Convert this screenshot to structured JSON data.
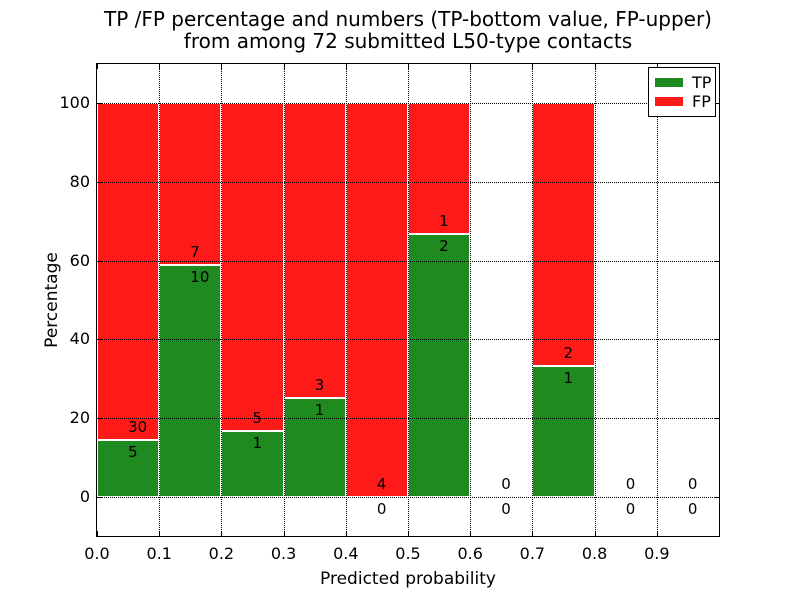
{
  "title": {
    "line1": "TP /FP percentage and numbers (TP-bottom value, FP-upper)",
    "line2": "from among 72 submitted L50-type contacts"
  },
  "colors": {
    "tp_green": "#1f8a1f",
    "fp_red": "#ff1a1a",
    "grid": "#000000",
    "text": "#000000",
    "background": "#ffffff"
  },
  "chart_data": {
    "type": "bar",
    "stacked": true,
    "title": "TP /FP percentage and numbers (TP-bottom value, FP-upper) from among 72 submitted L50-type contacts",
    "xlabel": "Predicted probability",
    "ylabel": "Percentage",
    "xlim": [
      0.0,
      1.0
    ],
    "ylim": [
      -10,
      110
    ],
    "bin_width": 0.1,
    "grid": "dotted black, drawn above bars",
    "legend_position": "upper right",
    "legend": {
      "entries": [
        {
          "label": "TP",
          "color": "#1f8a1f"
        },
        {
          "label": "FP",
          "color": "#ff1a1a"
        }
      ]
    },
    "x_ticks": {
      "values": [
        0.0,
        0.1,
        0.2,
        0.3,
        0.4,
        0.5,
        0.6,
        0.7,
        0.8,
        0.9
      ],
      "labels": [
        "0.0",
        "0.1",
        "0.2",
        "0.3",
        "0.4",
        "0.5",
        "0.6",
        "0.7",
        "0.8",
        "0.9"
      ]
    },
    "y_ticks": {
      "values": [
        0,
        20,
        40,
        60,
        80,
        100
      ],
      "labels": [
        "0",
        "20",
        "40",
        "60",
        "80",
        "100"
      ]
    },
    "total_contacts": 72,
    "series": [
      {
        "name": "TP",
        "counts": [
          5,
          10,
          1,
          1,
          0,
          2,
          0,
          1,
          0,
          0
        ]
      },
      {
        "name": "FP",
        "counts": [
          30,
          7,
          5,
          3,
          4,
          1,
          0,
          2,
          0,
          0
        ]
      }
    ],
    "bins": [
      {
        "range": [
          0.0,
          0.1
        ],
        "tp": 5,
        "fp": 30,
        "tp_percent": 14.3
      },
      {
        "range": [
          0.1,
          0.2
        ],
        "tp": 10,
        "fp": 7,
        "tp_percent": 58.8
      },
      {
        "range": [
          0.2,
          0.3
        ],
        "tp": 1,
        "fp": 5,
        "tp_percent": 16.7
      },
      {
        "range": [
          0.3,
          0.4
        ],
        "tp": 1,
        "fp": 3,
        "tp_percent": 25.0
      },
      {
        "range": [
          0.4,
          0.5
        ],
        "tp": 0,
        "fp": 4,
        "tp_percent": 0.0
      },
      {
        "range": [
          0.5,
          0.6
        ],
        "tp": 2,
        "fp": 1,
        "tp_percent": 66.7
      },
      {
        "range": [
          0.6,
          0.7
        ],
        "tp": 0,
        "fp": 0,
        "tp_percent": null
      },
      {
        "range": [
          0.7,
          0.8
        ],
        "tp": 1,
        "fp": 2,
        "tp_percent": 33.3
      },
      {
        "range": [
          0.8,
          0.9
        ],
        "tp": 0,
        "fp": 0,
        "tp_percent": null
      },
      {
        "range": [
          0.9,
          1.0
        ],
        "tp": 0,
        "fp": 0,
        "tp_percent": null
      }
    ]
  }
}
